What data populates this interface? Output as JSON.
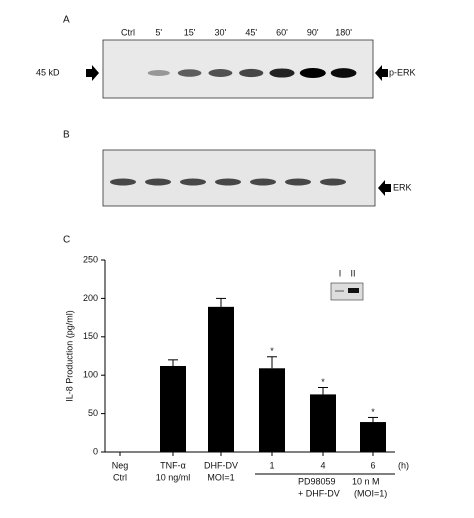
{
  "blot_a": {
    "label": "A",
    "lanes": [
      "Ctrl",
      "5'",
      "15'",
      "30'",
      "45'",
      "60'",
      "90'",
      "180'"
    ],
    "marker": "45 kD",
    "target": "p-ERK"
  },
  "blot_b": {
    "label": "B",
    "target": "ERK"
  },
  "chart_data": {
    "type": "bar",
    "panel_label": "C",
    "ylabel": "IL-8 Production (pg/ml)",
    "categories": [
      "Neg",
      "TNF-α",
      "DHF-DV",
      "1",
      "4",
      "6"
    ],
    "sublabels": [
      "Ctrl",
      "10 ng/ml",
      "MOI=1",
      null,
      null,
      null
    ],
    "values": [
      0,
      112,
      189,
      109,
      75,
      39
    ],
    "errors": [
      null,
      8,
      11,
      15,
      9,
      6
    ],
    "significance": [
      null,
      null,
      null,
      "*",
      "*",
      "*"
    ],
    "color": "#000000",
    "ylim": [
      0,
      250
    ],
    "yticks": [
      0,
      50,
      100,
      150,
      200,
      250
    ],
    "group_label": [
      "PD98059",
      "+ DHF-DV"
    ],
    "dose_label": [
      "10 n M",
      "(MOI=1)"
    ],
    "time_unit": "(h)",
    "inset_lanes": [
      "I",
      "II"
    ]
  }
}
